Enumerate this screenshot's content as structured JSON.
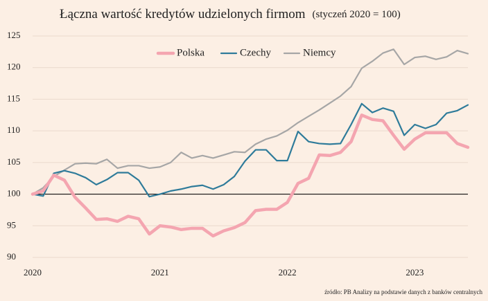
{
  "chart_data": {
    "type": "line",
    "title": "Łączna wartość kredytów udzielonych firmom",
    "subtitle": "(styczeń 2020 = 100)",
    "source": "źródło: PB Analizy na podstawie danych z banków centralnych",
    "categories": [
      "2020",
      null,
      null,
      null,
      null,
      null,
      null,
      null,
      null,
      null,
      null,
      null,
      "2021",
      null,
      null,
      null,
      null,
      null,
      null,
      null,
      null,
      null,
      null,
      null,
      "2022",
      null,
      null,
      null,
      null,
      null,
      null,
      null,
      null,
      null,
      null,
      null,
      "2023",
      null,
      null,
      null,
      null,
      null
    ],
    "series": [
      {
        "name": "Polska",
        "color": "#f4a5b0",
        "values": [
          100,
          100.5,
          103,
          102.2,
          99.5,
          97.8,
          96,
          96.1,
          95.7,
          96.5,
          96.1,
          93.7,
          95,
          94.8,
          94.4,
          94.6,
          94.6,
          93.4,
          94.2,
          94.7,
          95.5,
          97.4,
          97.6,
          97.6,
          98.7,
          101.7,
          102.5,
          106.2,
          106.1,
          106.6,
          108.3,
          112.5,
          111.8,
          111.6,
          109.3,
          107.1,
          108.7,
          109.7,
          109.7,
          109.7,
          108,
          107.4
        ]
      },
      {
        "name": "Czechy",
        "color": "#2e7b9a",
        "values": [
          100,
          99.7,
          103.3,
          103.7,
          103.3,
          102.6,
          101.5,
          102.3,
          103.4,
          103.4,
          102.2,
          99.6,
          100,
          100.5,
          100.8,
          101.2,
          101.4,
          100.8,
          101.5,
          102.8,
          105.2,
          107,
          107,
          105.3,
          105.3,
          109.9,
          108.3,
          108,
          107.9,
          108,
          111,
          114.3,
          112.9,
          113.6,
          113.1,
          109.3,
          111,
          110.4,
          111,
          112.8,
          113.2,
          114.1
        ]
      },
      {
        "name": "Niemcy",
        "color": "#a6a6a6",
        "values": [
          100,
          101,
          102.8,
          103.8,
          104.8,
          104.9,
          104.8,
          105.5,
          104.1,
          104.5,
          104.5,
          104.1,
          104.3,
          105,
          106.6,
          105.7,
          106.1,
          105.7,
          106.2,
          106.7,
          106.6,
          107.9,
          108.7,
          109.2,
          110.1,
          111.3,
          112.3,
          113.3,
          114.4,
          115.5,
          117,
          119.9,
          121,
          122.3,
          122.9,
          120.5,
          121.6,
          121.8,
          121.3,
          121.7,
          122.7,
          122.2
        ]
      }
    ],
    "ylim": [
      90,
      125
    ],
    "yticks": [
      90,
      95,
      100,
      105,
      110,
      115,
      120,
      125
    ],
    "reference_line": 100,
    "grid": true,
    "legend": "top"
  }
}
